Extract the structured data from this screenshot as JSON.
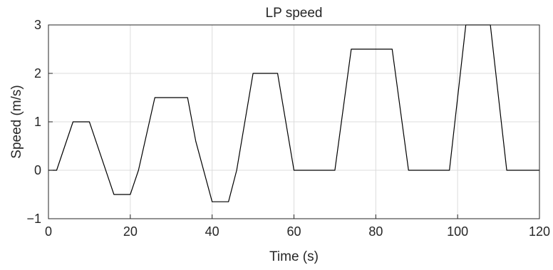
{
  "chart_data": {
    "type": "line",
    "title": "LP speed",
    "xlabel": "Time (s)",
    "ylabel": "Speed (m/s)",
    "xlim": [
      0,
      120
    ],
    "ylim": [
      -1,
      3
    ],
    "xticks": [
      0,
      20,
      40,
      60,
      80,
      100,
      120
    ],
    "yticks": [
      -1,
      0,
      1,
      2,
      3
    ],
    "xtick_labels": [
      "0",
      "20",
      "40",
      "60",
      "80",
      "100",
      "120"
    ],
    "ytick_labels": [
      "−1",
      "0",
      "1",
      "2",
      "3"
    ],
    "grid": true,
    "series": [
      {
        "color": "#000000",
        "x": [
          0,
          2,
          6,
          10,
          16,
          20,
          22,
          26,
          34,
          36,
          40,
          44,
          46,
          50,
          56,
          60,
          70,
          74,
          84,
          88,
          98,
          102,
          108,
          112,
          120
        ],
        "y": [
          0,
          0,
          1,
          1,
          -0.5,
          -0.5,
          0,
          1.5,
          1.5,
          0.6,
          -0.65,
          -0.65,
          0,
          2,
          2,
          0,
          0,
          2.5,
          2.5,
          0,
          0,
          3,
          3,
          0,
          0
        ]
      }
    ]
  }
}
